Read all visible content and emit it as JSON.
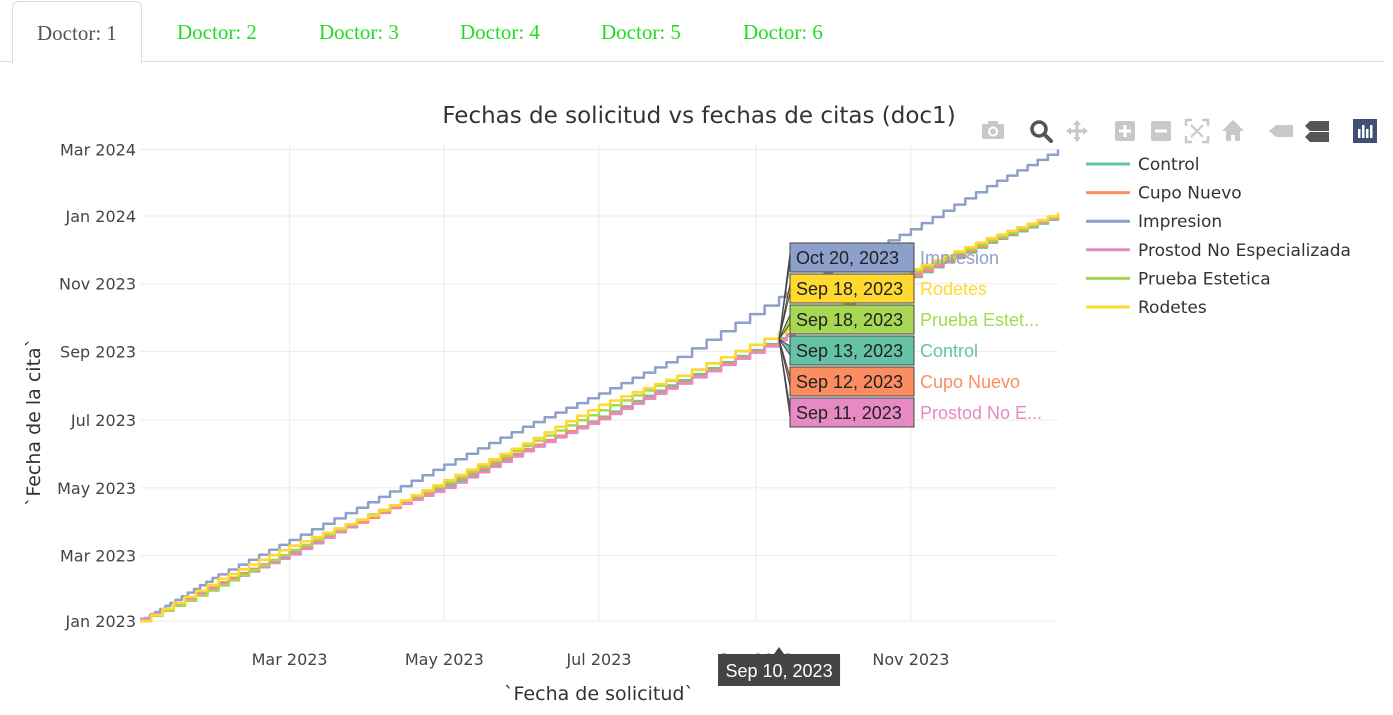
{
  "tabs": [
    {
      "label": "Doctor: 1",
      "active": true
    },
    {
      "label": "Doctor: 2",
      "active": false
    },
    {
      "label": "Doctor: 3",
      "active": false
    },
    {
      "label": "Doctor: 4",
      "active": false
    },
    {
      "label": "Doctor: 5",
      "active": false
    },
    {
      "label": "Doctor: 6",
      "active": false
    }
  ],
  "toolbar": [
    "camera-icon",
    "zoom-icon",
    "pan-icon",
    "zoom-in-icon",
    "zoom-out-icon",
    "autoscale-icon",
    "home-icon",
    "hover-closest-icon",
    "hover-compare-icon",
    "plotly-logo-icon"
  ],
  "chart_data": {
    "type": "line",
    "title": "Fechas de solicitud vs fechas de citas (doc1)",
    "xlabel": "`Fecha de solicitud`",
    "ylabel": "`Fecha de la cita`",
    "x_ticks": [
      "Mar 2023",
      "May 2023",
      "Jul 2023",
      "Sep 2023",
      "Nov 2023"
    ],
    "y_ticks": [
      "Jan 2023",
      "Mar 2023",
      "May 2023",
      "Jul 2023",
      "Sep 2023",
      "Nov 2023",
      "Jan 2024",
      "Mar 2024"
    ],
    "xlim": [
      "2023-01-01",
      "2023-12-29"
    ],
    "ylim": [
      "2023-01-01",
      "2024-03-05"
    ],
    "grid": true,
    "legend_position": "right",
    "series": [
      {
        "name": "Control",
        "color": "#66c2a5",
        "points": [
          [
            "2023-01-01",
            "2023-01-01"
          ],
          [
            "2023-02-01",
            "2023-02-04"
          ],
          [
            "2023-03-01",
            "2023-03-04"
          ],
          [
            "2023-04-01",
            "2023-04-05"
          ],
          [
            "2023-05-01",
            "2023-05-03"
          ],
          [
            "2023-06-01",
            "2023-06-04"
          ],
          [
            "2023-07-01",
            "2023-07-04"
          ],
          [
            "2023-08-01",
            "2023-08-06"
          ],
          [
            "2023-09-10",
            "2023-09-13"
          ],
          [
            "2023-10-01",
            "2023-10-07"
          ],
          [
            "2023-11-01",
            "2023-11-07"
          ],
          [
            "2023-12-01",
            "2023-12-08"
          ],
          [
            "2023-12-29",
            "2024-01-01"
          ]
        ]
      },
      {
        "name": "Cupo Nuevo",
        "color": "#fc8d62",
        "points": [
          [
            "2023-01-01",
            "2023-01-02"
          ],
          [
            "2023-02-01",
            "2023-02-05"
          ],
          [
            "2023-03-01",
            "2023-03-05"
          ],
          [
            "2023-04-01",
            "2023-04-04"
          ],
          [
            "2023-05-01",
            "2023-05-05"
          ],
          [
            "2023-06-01",
            "2023-06-05"
          ],
          [
            "2023-07-01",
            "2023-07-03"
          ],
          [
            "2023-08-01",
            "2023-08-04"
          ],
          [
            "2023-09-10",
            "2023-09-12"
          ],
          [
            "2023-10-01",
            "2023-10-06"
          ],
          [
            "2023-11-01",
            "2023-11-08"
          ],
          [
            "2023-12-01",
            "2023-12-09"
          ],
          [
            "2023-12-29",
            "2024-01-02"
          ]
        ]
      },
      {
        "name": "Impresion",
        "color": "#8da0cb",
        "points": [
          [
            "2023-01-01",
            "2023-01-01"
          ],
          [
            "2023-01-15",
            "2023-01-20"
          ],
          [
            "2023-02-01",
            "2023-02-12"
          ],
          [
            "2023-03-01",
            "2023-03-15"
          ],
          [
            "2023-04-01",
            "2023-04-18"
          ],
          [
            "2023-05-01",
            "2023-05-22"
          ],
          [
            "2023-06-01",
            "2023-06-25"
          ],
          [
            "2023-07-01",
            "2023-07-25"
          ],
          [
            "2023-08-01",
            "2023-08-27"
          ],
          [
            "2023-09-10",
            "2023-10-20"
          ],
          [
            "2023-10-01",
            "2023-11-15"
          ],
          [
            "2023-11-01",
            "2023-12-20"
          ],
          [
            "2023-12-01",
            "2024-01-28"
          ],
          [
            "2023-12-29",
            "2024-03-01"
          ]
        ]
      },
      {
        "name": "Prostod No Especializada",
        "color": "#e78ac3",
        "points": [
          [
            "2023-01-01",
            "2023-01-03"
          ],
          [
            "2023-02-01",
            "2023-02-03"
          ],
          [
            "2023-03-01",
            "2023-03-02"
          ],
          [
            "2023-04-01",
            "2023-04-06"
          ],
          [
            "2023-05-01",
            "2023-05-01"
          ],
          [
            "2023-06-01",
            "2023-06-03"
          ],
          [
            "2023-07-01",
            "2023-07-02"
          ],
          [
            "2023-08-01",
            "2023-08-03"
          ],
          [
            "2023-09-10",
            "2023-09-11"
          ],
          [
            "2023-10-01",
            "2023-10-08"
          ],
          [
            "2023-11-01",
            "2023-11-10"
          ],
          [
            "2023-12-01",
            "2023-12-12"
          ],
          [
            "2023-12-29",
            "2024-01-01"
          ]
        ]
      },
      {
        "name": "Prueba Estetica",
        "color": "#a6d854",
        "points": [
          [
            "2023-01-01",
            "2023-01-01"
          ],
          [
            "2023-02-01",
            "2023-02-02"
          ],
          [
            "2023-03-01",
            "2023-03-06"
          ],
          [
            "2023-04-01",
            "2023-04-07"
          ],
          [
            "2023-05-01",
            "2023-05-06"
          ],
          [
            "2023-06-01",
            "2023-06-08"
          ],
          [
            "2023-07-01",
            "2023-07-10"
          ],
          [
            "2023-08-01",
            "2023-08-10"
          ],
          [
            "2023-09-10",
            "2023-09-18"
          ],
          [
            "2023-10-01",
            "2023-10-10"
          ],
          [
            "2023-11-01",
            "2023-11-12"
          ],
          [
            "2023-12-01",
            "2023-12-10"
          ],
          [
            "2023-12-29",
            "2024-01-03"
          ]
        ]
      },
      {
        "name": "Rodetes",
        "color": "#ffd92f",
        "points": [
          [
            "2023-01-01",
            "2023-01-01"
          ],
          [
            "2023-02-01",
            "2023-02-08"
          ],
          [
            "2023-03-01",
            "2023-03-10"
          ],
          [
            "2023-04-01",
            "2023-04-06"
          ],
          [
            "2023-05-01",
            "2023-05-08"
          ],
          [
            "2023-06-01",
            "2023-06-10"
          ],
          [
            "2023-07-01",
            "2023-07-15"
          ],
          [
            "2023-08-01",
            "2023-08-10"
          ],
          [
            "2023-09-10",
            "2023-09-18"
          ],
          [
            "2023-10-01",
            "2023-10-12"
          ],
          [
            "2023-11-01",
            "2023-11-14"
          ],
          [
            "2023-12-01",
            "2023-12-12"
          ],
          [
            "2023-12-29",
            "2024-01-04"
          ]
        ]
      }
    ],
    "hover": {
      "x_label": "Sep 10, 2023",
      "items": [
        {
          "date": "Oct 20, 2023",
          "name": "Impresion",
          "color": "#8da0cb",
          "text_color": "#222222"
        },
        {
          "date": "Sep 18, 2023",
          "name": "Rodetes",
          "color": "#ffd92f",
          "text_color": "#222222"
        },
        {
          "date": "Sep 18, 2023",
          "name": "Prueba Estet...",
          "color": "#a6d854",
          "text_color": "#222222"
        },
        {
          "date": "Sep 13, 2023",
          "name": "Control",
          "color": "#66c2a5",
          "text_color": "#222222"
        },
        {
          "date": "Sep 12, 2023",
          "name": "Cupo Nuevo",
          "color": "#fc8d62",
          "text_color": "#222222"
        },
        {
          "date": "Sep 11, 2023",
          "name": "Prostod No E...",
          "color": "#e78ac3",
          "text_color": "#222222"
        }
      ]
    }
  }
}
